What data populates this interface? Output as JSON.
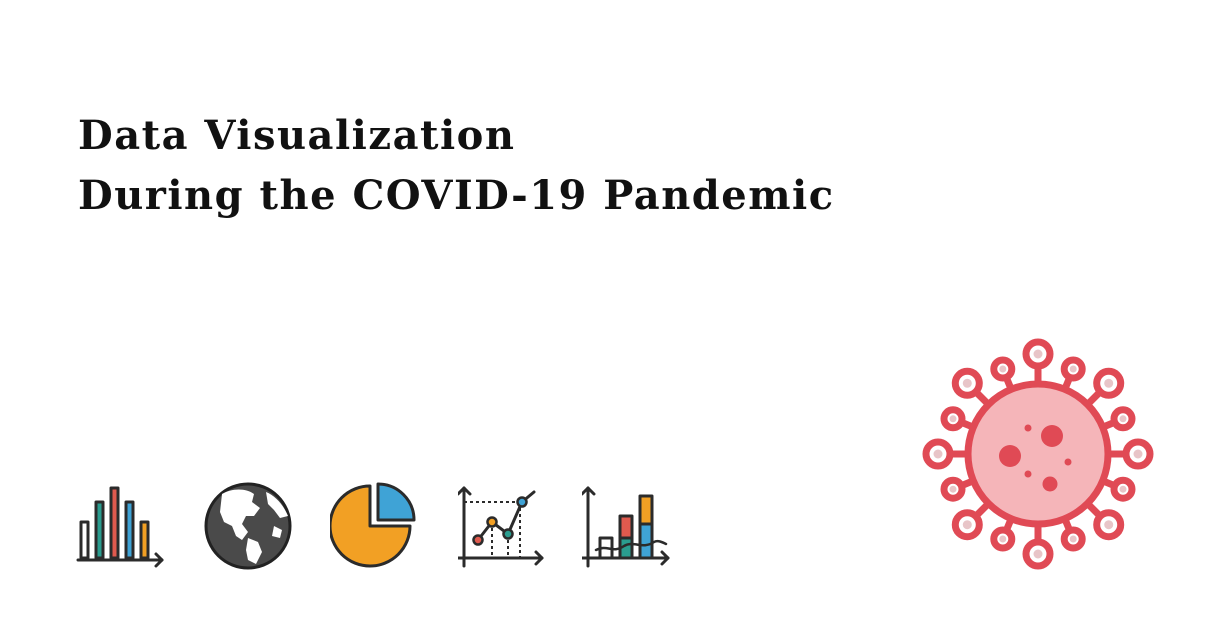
{
  "title": {
    "line1": "Data Visualization",
    "line2": "During the COVID-19 Pandemic"
  },
  "icons": [
    "bar-chart-icon",
    "globe-icon",
    "pie-chart-icon",
    "line-chart-icon",
    "stacked-bar-chart-icon",
    "virus-icon"
  ],
  "colors": {
    "text": "#111111",
    "outline": "#2b2b2b",
    "teal": "#2a9d8f",
    "red": "#e05a4e",
    "blue": "#3fa3d6",
    "orange": "#f2a024",
    "globe": "#4a4a4a",
    "virus_stroke": "#e04a55",
    "virus_fill": "#f5b5b9"
  }
}
